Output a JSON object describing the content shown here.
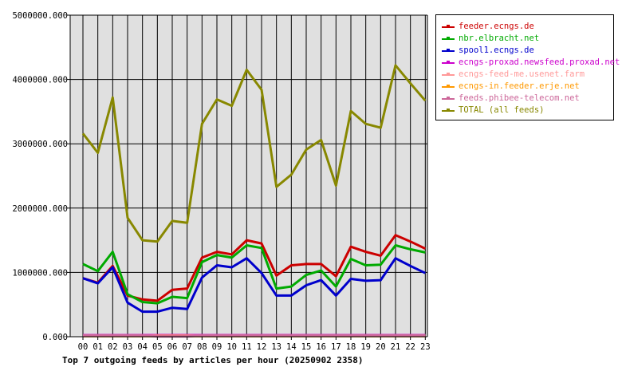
{
  "chart_data": {
    "type": "line",
    "title": "Top 7 outgoing feeds by articles per hour (20250902 2358)",
    "xlabel": "",
    "ylabel": "",
    "categories": [
      "00",
      "01",
      "02",
      "03",
      "04",
      "05",
      "06",
      "07",
      "08",
      "09",
      "10",
      "11",
      "12",
      "13",
      "14",
      "15",
      "16",
      "17",
      "18",
      "19",
      "20",
      "21",
      "22",
      "23"
    ],
    "ylim": [
      0,
      5000000
    ],
    "yticks": [
      0,
      1000000,
      2000000,
      3000000,
      4000000,
      5000000
    ],
    "ytick_labels": [
      "0.000",
      "1000000.000",
      "2000000.000",
      "3000000.000",
      "4000000.000",
      "5000000.000"
    ],
    "grid": true,
    "legend_position": "right",
    "series": [
      {
        "name": "feeder.ecngs.de",
        "color": "#cc0000",
        "values": [
          910000,
          840000,
          1100000,
          640000,
          580000,
          560000,
          730000,
          750000,
          1230000,
          1320000,
          1280000,
          1500000,
          1450000,
          950000,
          1110000,
          1130000,
          1130000,
          940000,
          1400000,
          1320000,
          1260000,
          1580000,
          1480000,
          1370000
        ]
      },
      {
        "name": "nbr.elbracht.net",
        "color": "#00aa00",
        "values": [
          1130000,
          1020000,
          1320000,
          660000,
          540000,
          520000,
          620000,
          600000,
          1160000,
          1270000,
          1230000,
          1420000,
          1380000,
          750000,
          780000,
          960000,
          1030000,
          780000,
          1210000,
          1110000,
          1120000,
          1420000,
          1360000,
          1310000
        ]
      },
      {
        "name": "spool1.ecngs.de",
        "color": "#0000cc",
        "values": [
          910000,
          830000,
          1080000,
          530000,
          390000,
          390000,
          450000,
          430000,
          920000,
          1110000,
          1080000,
          1220000,
          990000,
          640000,
          640000,
          800000,
          880000,
          640000,
          900000,
          870000,
          880000,
          1220000,
          1100000,
          990000
        ]
      },
      {
        "name": "ecngs-proxad.newsfeed.proxad.net",
        "color": "#cc00cc",
        "values": [
          25000,
          25000,
          25000,
          25000,
          25000,
          25000,
          25000,
          25000,
          25000,
          25000,
          25000,
          25000,
          25000,
          25000,
          25000,
          25000,
          25000,
          25000,
          25000,
          25000,
          25000,
          25000,
          25000,
          25000
        ]
      },
      {
        "name": "ecngs-feed-me.usenet.farm",
        "color": "#ff9999",
        "values": [
          15000,
          15000,
          15000,
          15000,
          15000,
          15000,
          15000,
          15000,
          15000,
          15000,
          15000,
          15000,
          15000,
          15000,
          15000,
          15000,
          15000,
          15000,
          15000,
          15000,
          15000,
          15000,
          15000,
          15000
        ]
      },
      {
        "name": "ecngs-in.feeder.erje.net",
        "color": "#ff9900",
        "values": [
          10000,
          10000,
          10000,
          10000,
          10000,
          10000,
          10000,
          10000,
          10000,
          10000,
          10000,
          10000,
          10000,
          10000,
          10000,
          10000,
          10000,
          10000,
          10000,
          10000,
          10000,
          10000,
          10000,
          10000
        ]
      },
      {
        "name": "feeds.phibee-telecom.net",
        "color": "#cc6699",
        "values": [
          20000,
          20000,
          20000,
          20000,
          20000,
          5000,
          5000,
          5000,
          20000,
          20000,
          20000,
          20000,
          20000,
          20000,
          20000,
          20000,
          20000,
          20000,
          20000,
          20000,
          20000,
          20000,
          20000,
          20000
        ]
      },
      {
        "name": "TOTAL (all feeds)",
        "color": "#888800",
        "values": [
          3160000,
          2860000,
          3720000,
          1850000,
          1500000,
          1480000,
          1800000,
          1770000,
          3310000,
          3690000,
          3590000,
          4150000,
          3840000,
          2330000,
          2520000,
          2910000,
          3060000,
          2350000,
          3510000,
          3310000,
          3250000,
          4220000,
          3940000,
          3670000
        ]
      }
    ]
  }
}
